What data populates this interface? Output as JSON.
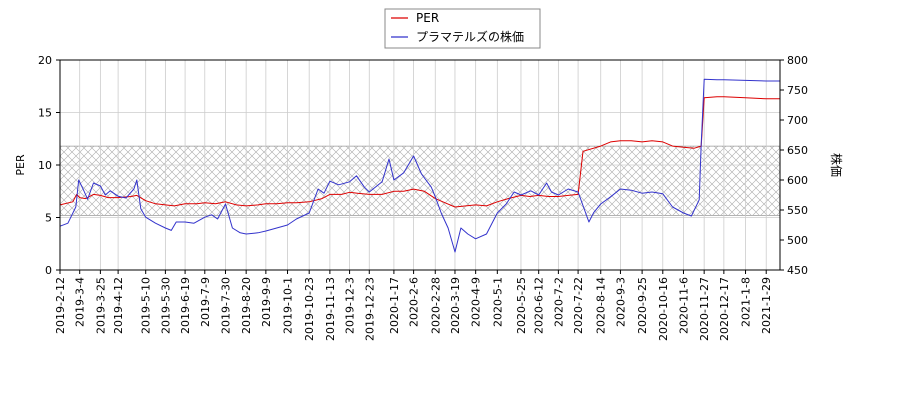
{
  "chart_data": {
    "type": "line",
    "title": "",
    "xlabel": "",
    "ylabel_left": "PER",
    "ylabel_right": "株価",
    "ylim_left": [
      0,
      20
    ],
    "ylim_right": [
      450,
      800
    ],
    "yticks_left": [
      0,
      5,
      10,
      15,
      20
    ],
    "yticks_right": [
      450,
      500,
      550,
      600,
      650,
      700,
      750,
      800
    ],
    "xrange": [
      "2019-02-12",
      "2021-02-12"
    ],
    "x_ticks": [
      "2019-2-12",
      "2019-3-4",
      "2019-3-25",
      "2019-4-12",
      "2019-5-10",
      "2019-5-30",
      "2019-6-19",
      "2019-7-9",
      "2019-7-30",
      "2019-8-20",
      "2019-9-9",
      "2019-10-1",
      "2019-10-23",
      "2019-11-13",
      "2019-12-3",
      "2019-12-23",
      "2020-1-17",
      "2020-2-6",
      "2020-2-28",
      "2020-3-19",
      "2020-4-9",
      "2020-5-1",
      "2020-5-25",
      "2020-6-12",
      "2020-7-2",
      "2020-7-22",
      "2020-8-14",
      "2020-9-3",
      "2020-9-25",
      "2020-10-16",
      "2020-11-6",
      "2020-11-27",
      "2020-12-17",
      "2021-1-8",
      "2021-1-29"
    ],
    "grid": true,
    "legend_position": "top-center",
    "shaded_band_left": [
      5.2,
      11.8
    ],
    "colors": {
      "per": "#dd0000",
      "price": "#3333cc",
      "band": "#999999"
    },
    "series": [
      {
        "name": "PER",
        "axis": "left",
        "points": [
          [
            "2019-02-12",
            6.2
          ],
          [
            "2019-02-25",
            6.5
          ],
          [
            "2019-03-01",
            7.2
          ],
          [
            "2019-03-04",
            6.9
          ],
          [
            "2019-03-10",
            6.8
          ],
          [
            "2019-03-18",
            7.2
          ],
          [
            "2019-03-25",
            7.1
          ],
          [
            "2019-04-02",
            6.9
          ],
          [
            "2019-04-12",
            6.9
          ],
          [
            "2019-04-25",
            7.0
          ],
          [
            "2019-05-01",
            7.1
          ],
          [
            "2019-05-10",
            6.6
          ],
          [
            "2019-05-20",
            6.3
          ],
          [
            "2019-05-30",
            6.2
          ],
          [
            "2019-06-08",
            6.1
          ],
          [
            "2019-06-19",
            6.3
          ],
          [
            "2019-07-01",
            6.3
          ],
          [
            "2019-07-09",
            6.4
          ],
          [
            "2019-07-20",
            6.3
          ],
          [
            "2019-07-30",
            6.5
          ],
          [
            "2019-08-10",
            6.2
          ],
          [
            "2019-08-20",
            6.1
          ],
          [
            "2019-09-01",
            6.2
          ],
          [
            "2019-09-09",
            6.3
          ],
          [
            "2019-09-20",
            6.3
          ],
          [
            "2019-10-01",
            6.4
          ],
          [
            "2019-10-10",
            6.4
          ],
          [
            "2019-10-23",
            6.5
          ],
          [
            "2019-11-05",
            6.8
          ],
          [
            "2019-11-13",
            7.2
          ],
          [
            "2019-11-25",
            7.2
          ],
          [
            "2019-12-03",
            7.4
          ],
          [
            "2019-12-12",
            7.3
          ],
          [
            "2019-12-23",
            7.2
          ],
          [
            "2020-01-05",
            7.2
          ],
          [
            "2020-01-17",
            7.5
          ],
          [
            "2020-01-27",
            7.5
          ],
          [
            "2020-02-06",
            7.7
          ],
          [
            "2020-02-17",
            7.5
          ],
          [
            "2020-02-28",
            6.8
          ],
          [
            "2020-03-09",
            6.4
          ],
          [
            "2020-03-19",
            6.0
          ],
          [
            "2020-03-30",
            6.1
          ],
          [
            "2020-04-09",
            6.2
          ],
          [
            "2020-04-20",
            6.1
          ],
          [
            "2020-05-01",
            6.5
          ],
          [
            "2020-05-12",
            6.8
          ],
          [
            "2020-05-25",
            7.1
          ],
          [
            "2020-06-03",
            7.0
          ],
          [
            "2020-06-12",
            7.1
          ],
          [
            "2020-06-22",
            7.0
          ],
          [
            "2020-07-02",
            7.0
          ],
          [
            "2020-07-12",
            7.1
          ],
          [
            "2020-07-22",
            7.2
          ],
          [
            "2020-07-27",
            11.3
          ],
          [
            "2020-08-14",
            11.8
          ],
          [
            "2020-08-24",
            12.2
          ],
          [
            "2020-09-03",
            12.3
          ],
          [
            "2020-09-14",
            12.3
          ],
          [
            "2020-09-25",
            12.2
          ],
          [
            "2020-10-05",
            12.3
          ],
          [
            "2020-10-16",
            12.2
          ],
          [
            "2020-10-26",
            11.8
          ],
          [
            "2020-11-06",
            11.7
          ],
          [
            "2020-11-17",
            11.6
          ],
          [
            "2020-11-24",
            11.8
          ],
          [
            "2020-11-27",
            16.4
          ],
          [
            "2020-12-10",
            16.5
          ],
          [
            "2020-12-17",
            16.5
          ],
          [
            "2021-01-08",
            16.4
          ],
          [
            "2021-01-29",
            16.3
          ],
          [
            "2021-02-12",
            16.3
          ]
        ]
      },
      {
        "name": "プラマテルズの株価",
        "axis": "right",
        "points": [
          [
            "2019-02-12",
            523
          ],
          [
            "2019-02-20",
            528
          ],
          [
            "2019-02-28",
            555
          ],
          [
            "2019-03-03",
            600
          ],
          [
            "2019-03-08",
            583
          ],
          [
            "2019-03-12",
            568
          ],
          [
            "2019-03-18",
            595
          ],
          [
            "2019-03-25",
            590
          ],
          [
            "2019-03-30",
            575
          ],
          [
            "2019-04-04",
            582
          ],
          [
            "2019-04-12",
            573
          ],
          [
            "2019-04-20",
            570
          ],
          [
            "2019-04-28",
            585
          ],
          [
            "2019-05-01",
            600
          ],
          [
            "2019-05-05",
            552
          ],
          [
            "2019-05-10",
            538
          ],
          [
            "2019-05-20",
            528
          ],
          [
            "2019-05-30",
            520
          ],
          [
            "2019-06-05",
            516
          ],
          [
            "2019-06-10",
            530
          ],
          [
            "2019-06-19",
            530
          ],
          [
            "2019-06-28",
            528
          ],
          [
            "2019-07-09",
            538
          ],
          [
            "2019-07-16",
            542
          ],
          [
            "2019-07-22",
            535
          ],
          [
            "2019-07-30",
            560
          ],
          [
            "2019-08-06",
            520
          ],
          [
            "2019-08-14",
            512
          ],
          [
            "2019-08-20",
            510
          ],
          [
            "2019-09-01",
            512
          ],
          [
            "2019-09-09",
            515
          ],
          [
            "2019-09-20",
            520
          ],
          [
            "2019-10-01",
            525
          ],
          [
            "2019-10-10",
            535
          ],
          [
            "2019-10-23",
            545
          ],
          [
            "2019-11-01",
            585
          ],
          [
            "2019-11-07",
            578
          ],
          [
            "2019-11-13",
            598
          ],
          [
            "2019-11-22",
            592
          ],
          [
            "2019-12-03",
            597
          ],
          [
            "2019-12-10",
            607
          ],
          [
            "2019-12-18",
            588
          ],
          [
            "2019-12-23",
            580
          ],
          [
            "2020-01-05",
            597
          ],
          [
            "2020-01-12",
            635
          ],
          [
            "2020-01-17",
            600
          ],
          [
            "2020-01-27",
            612
          ],
          [
            "2020-02-06",
            640
          ],
          [
            "2020-02-14",
            610
          ],
          [
            "2020-02-24",
            588
          ],
          [
            "2020-02-28",
            572
          ],
          [
            "2020-03-05",
            545
          ],
          [
            "2020-03-12",
            520
          ],
          [
            "2020-03-19",
            480
          ],
          [
            "2020-03-25",
            520
          ],
          [
            "2020-04-01",
            510
          ],
          [
            "2020-04-09",
            502
          ],
          [
            "2020-04-20",
            510
          ],
          [
            "2020-05-01",
            545
          ],
          [
            "2020-05-10",
            560
          ],
          [
            "2020-05-18",
            580
          ],
          [
            "2020-05-25",
            575
          ],
          [
            "2020-06-04",
            582
          ],
          [
            "2020-06-12",
            575
          ],
          [
            "2020-06-20",
            595
          ],
          [
            "2020-06-25",
            580
          ],
          [
            "2020-07-02",
            575
          ],
          [
            "2020-07-12",
            585
          ],
          [
            "2020-07-22",
            580
          ],
          [
            "2020-08-02",
            530
          ],
          [
            "2020-08-07",
            546
          ],
          [
            "2020-08-14",
            560
          ],
          [
            "2020-08-24",
            572
          ],
          [
            "2020-09-03",
            585
          ],
          [
            "2020-09-14",
            583
          ],
          [
            "2020-09-25",
            578
          ],
          [
            "2020-10-05",
            580
          ],
          [
            "2020-10-16",
            577
          ],
          [
            "2020-10-26",
            555
          ],
          [
            "2020-11-06",
            545
          ],
          [
            "2020-11-14",
            540
          ],
          [
            "2020-11-22",
            567
          ],
          [
            "2020-11-24",
            660
          ],
          [
            "2020-11-27",
            768
          ],
          [
            "2020-12-10",
            767
          ],
          [
            "2020-12-17",
            767
          ],
          [
            "2021-01-08",
            766
          ],
          [
            "2021-01-29",
            765
          ],
          [
            "2021-02-12",
            765
          ]
        ]
      }
    ]
  }
}
